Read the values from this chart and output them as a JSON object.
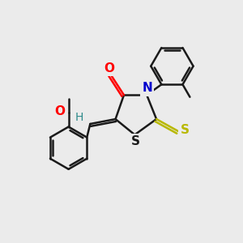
{
  "background_color": "#ebebeb",
  "bond_color": "#1a1a1a",
  "bond_width": 1.8,
  "atom_colors": {
    "O": "#ff0000",
    "N": "#0000cd",
    "S_thioxo": "#b8b800",
    "S_ring": "#1a1a1a",
    "H": "#2e8b8b",
    "C": "#1a1a1a"
  },
  "figsize": [
    3.0,
    3.0
  ],
  "dpi": 100
}
